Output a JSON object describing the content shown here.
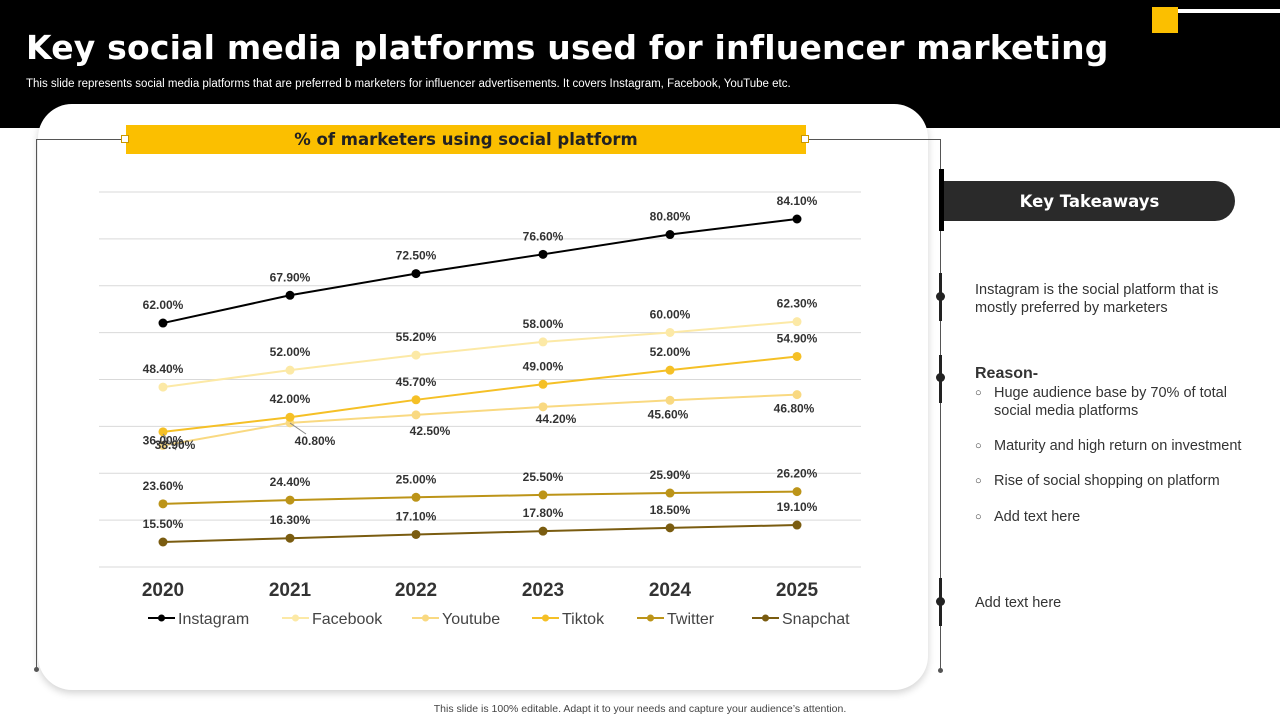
{
  "slide": {
    "title": "Key social media platforms used for influencer marketing",
    "subtitle": "This slide represents social media platforms that are preferred b marketers for influencer advertisements. It covers Instagram, Facebook, YouTube etc.",
    "footer": "This slide is 100% editable.  Adapt it to your needs and capture your audience’s attention."
  },
  "colors": {
    "accent": "#fbbf00",
    "header_bg": "#000000",
    "instagram": "#000000",
    "facebook": "#fce9a6",
    "youtube": "#f9d981",
    "tiktok": "#f5c026",
    "twitter": "#bc9418",
    "snapchat": "#7a5c10"
  },
  "chart_data": {
    "type": "line",
    "title": "% of marketers using social platform",
    "categories": [
      "2020",
      "2021",
      "2022",
      "2023",
      "2024",
      "2025"
    ],
    "ylim": [
      0,
      100
    ],
    "grid": true,
    "legend": "bottom",
    "series": [
      {
        "name": "Instagram",
        "values": [
          62.0,
          67.9,
          72.5,
          76.6,
          80.8,
          84.1
        ],
        "labels": [
          "62.00%",
          "67.90%",
          "72.50%",
          "76.60%",
          "80.80%",
          "84.10%"
        ]
      },
      {
        "name": "Facebook",
        "values": [
          48.4,
          52.0,
          55.2,
          58.0,
          60.0,
          62.3
        ],
        "labels": [
          "48.40%",
          "52.00%",
          "55.20%",
          "58.00%",
          "60.00%",
          "62.30%"
        ]
      },
      {
        "name": "Youtube",
        "values": [
          36.0,
          40.8,
          42.5,
          44.2,
          45.6,
          46.8
        ],
        "labels": [
          "36.00%",
          "40.80%",
          "42.50%",
          "44.20%",
          "45.60%",
          "46.80%"
        ]
      },
      {
        "name": "Tiktok",
        "values": [
          38.9,
          42.0,
          45.7,
          49.0,
          52.0,
          54.9
        ],
        "labels": [
          "38.90%",
          "42.00%",
          "45.70%",
          "49.00%",
          "52.00%",
          "54.90%"
        ]
      },
      {
        "name": "Twitter",
        "values": [
          23.6,
          24.4,
          25.0,
          25.5,
          25.9,
          26.2
        ],
        "labels": [
          "23.60%",
          "24.40%",
          "25.00%",
          "25.50%",
          "25.90%",
          "26.20%"
        ]
      },
      {
        "name": "Snapchat",
        "values": [
          15.5,
          16.3,
          17.1,
          17.8,
          18.5,
          19.1
        ],
        "labels": [
          "15.50%",
          "16.30%",
          "17.10%",
          "17.80%",
          "18.50%",
          "19.10%"
        ]
      }
    ]
  },
  "takeaways": {
    "header": "Key Takeaways",
    "point1": "Instagram is the social platform that is mostly preferred by marketers",
    "reason_title": "Reason-",
    "bullet_marker": "○",
    "reasons": [
      "Huge audience base by 70%  of total social media platforms",
      "Maturity and high return on investment",
      "Rise of social shopping on platform",
      "Add text here"
    ],
    "point3": "Add text here"
  }
}
